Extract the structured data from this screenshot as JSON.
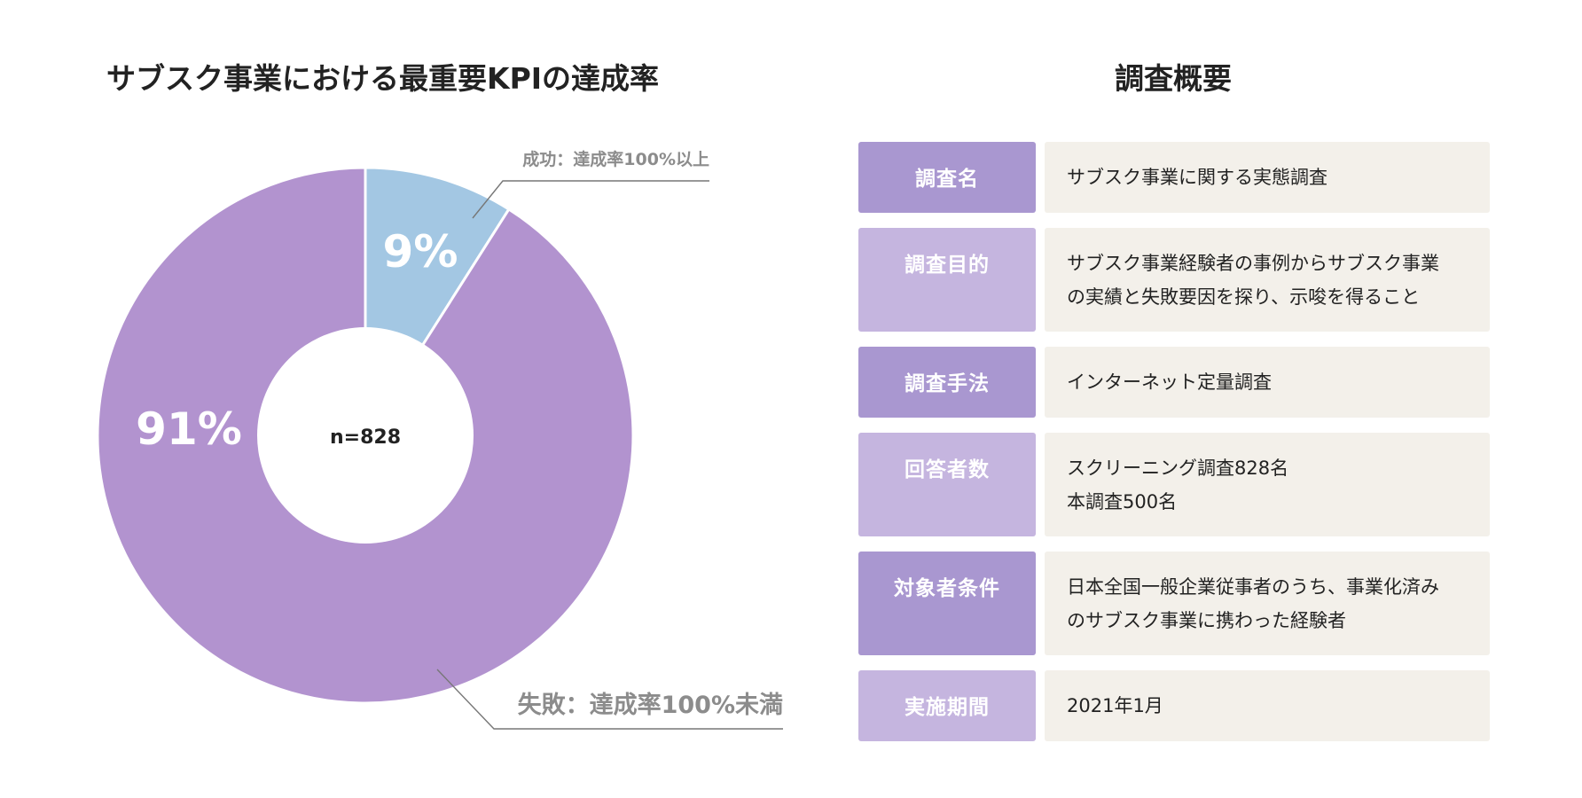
{
  "chart_data": {
    "type": "pie",
    "title": "サブスク事業における最重要KPIの達成率",
    "center_label": "n=828",
    "slices": [
      {
        "name": "成功：達成率100%以上",
        "value": 9,
        "label": "9%",
        "color": "#a3c7e3"
      },
      {
        "name": "失敗：達成率100%未満",
        "value": 91,
        "label": "91%",
        "color": "#b293cf"
      }
    ]
  },
  "summary": {
    "title": "調査概要",
    "rows": [
      {
        "label": "調査名",
        "value": "サブスク事業に関する実態調査"
      },
      {
        "label": "調査目的",
        "value": "サブスク事業経験者の事例からサブスク事業\nの実績と失敗要因を探り、示唆を得ること"
      },
      {
        "label": "調査手法",
        "value": "インターネット定量調査"
      },
      {
        "label": "回答者数",
        "value": "スクリーニング調査828名\n本調査500名"
      },
      {
        "label": "対象者条件",
        "value": "日本全国一般企業従事者のうち、事業化済み\nのサブスク事業に携わった経験者"
      },
      {
        "label": "実施期間",
        "value": "2021年1月"
      }
    ]
  }
}
